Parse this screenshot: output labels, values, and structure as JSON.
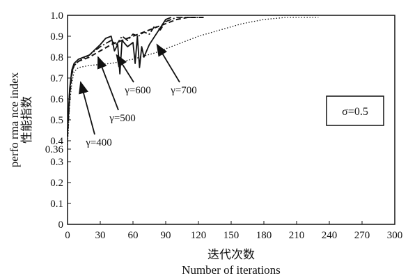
{
  "chart_data": {
    "type": "line",
    "xlabel_cn": "迭代次数",
    "xlabel_en": "Number of iterations",
    "ylabel_en": "perfo rma nce index",
    "ylabel_cn": "性能指数",
    "xlim": [
      0,
      300
    ],
    "ylim": [
      0,
      1.0
    ],
    "x_ticks": [
      "0",
      "30",
      "60",
      "90",
      "120",
      "150",
      "180",
      "210",
      "240",
      "270",
      "300"
    ],
    "y_ticks": [
      "0",
      "0.1",
      "0.2",
      "0.3",
      "0.36",
      "0.4",
      "0.5",
      "0.6",
      "0.7",
      "0.8",
      "0.9",
      "1.0"
    ],
    "sigma_label": "σ=0.5",
    "series": [
      {
        "name": "γ=400",
        "style": "dotted",
        "x": [
          0,
          2,
          4,
          6,
          10,
          20,
          40,
          60,
          80,
          100,
          120,
          140,
          160,
          180,
          200,
          215,
          230
        ],
        "y": [
          0.38,
          0.58,
          0.68,
          0.73,
          0.75,
          0.76,
          0.77,
          0.79,
          0.82,
          0.86,
          0.9,
          0.93,
          0.96,
          0.98,
          0.99,
          0.99,
          0.99
        ]
      },
      {
        "name": "γ=500",
        "style": "dashed",
        "x": [
          0,
          2,
          4,
          6,
          10,
          20,
          30,
          40,
          50,
          60,
          70,
          80,
          90,
          100,
          110,
          120,
          125
        ],
        "y": [
          0.42,
          0.62,
          0.72,
          0.76,
          0.78,
          0.8,
          0.83,
          0.86,
          0.88,
          0.9,
          0.92,
          0.94,
          0.96,
          0.98,
          0.99,
          0.99,
          0.99
        ]
      },
      {
        "name": "γ=600",
        "style": "solid",
        "x": [
          0,
          2,
          4,
          6,
          10,
          20,
          30,
          35,
          40,
          43,
          46,
          48,
          50,
          55,
          60,
          62,
          64,
          66,
          68,
          70,
          75,
          80,
          85,
          90,
          95
        ],
        "y": [
          0.45,
          0.65,
          0.74,
          0.77,
          0.79,
          0.81,
          0.86,
          0.89,
          0.9,
          0.83,
          0.86,
          0.72,
          0.88,
          0.85,
          0.87,
          0.77,
          0.9,
          0.75,
          0.85,
          0.8,
          0.86,
          0.9,
          0.94,
          0.98,
          0.99
        ]
      },
      {
        "name": "γ=700",
        "style": "dash-dot",
        "x": [
          0,
          2,
          4,
          6,
          10,
          20,
          30,
          40,
          45,
          50,
          55,
          60,
          65,
          70,
          75,
          80,
          85,
          90,
          100,
          110,
          120
        ],
        "y": [
          0.44,
          0.64,
          0.73,
          0.76,
          0.78,
          0.81,
          0.85,
          0.88,
          0.86,
          0.9,
          0.88,
          0.91,
          0.9,
          0.92,
          0.91,
          0.95,
          0.93,
          0.97,
          0.99,
          0.99,
          0.99
        ]
      }
    ],
    "annotations": [
      {
        "label": "γ=400",
        "target_x": 12,
        "target_y": 0.68
      },
      {
        "label": "γ=500",
        "target_x": 28,
        "target_y": 0.8
      },
      {
        "label": "γ=600",
        "target_x": 45,
        "target_y": 0.81
      },
      {
        "label": "γ=700",
        "target_x": 82,
        "target_y": 0.86
      }
    ]
  }
}
